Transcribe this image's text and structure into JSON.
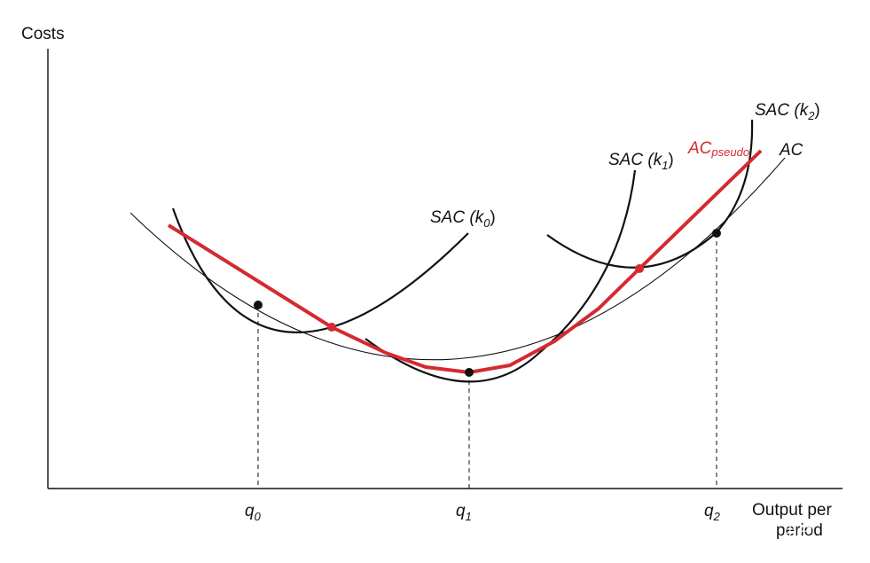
{
  "axes": {
    "y_label": "Costs",
    "x_label_line1": "Output per",
    "x_label_line2": "period"
  },
  "ticks": [
    {
      "base": "q",
      "sub": "0"
    },
    {
      "base": "q",
      "sub": "1"
    },
    {
      "base": "q",
      "sub": "2"
    }
  ],
  "curves": {
    "sac_k0": {
      "base": "SAC (",
      "var": "k",
      "sub": "0",
      "close": ")"
    },
    "sac_k1": {
      "base": "SAC (",
      "var": "k",
      "sub": "1",
      "close": ")"
    },
    "sac_k2": {
      "base": "SAC (",
      "var": "k",
      "sub": "2",
      "close": ")"
    },
    "ac": "AC",
    "ac_pseudo": {
      "base": "AC",
      "sub": "pseudo"
    }
  },
  "watermark": "知乎 用户",
  "colors": {
    "black": "#111111",
    "red": "#d42a30"
  }
}
